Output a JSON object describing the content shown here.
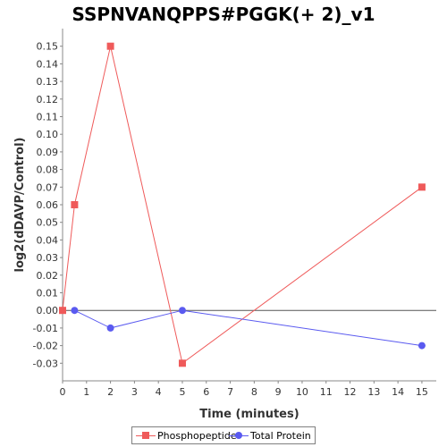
{
  "chart_data": {
    "type": "line",
    "title": "SSPNVANQPPS#PGGK(+ 2)_v1",
    "xlabel": "Time (minutes)",
    "ylabel": "log2(dDAVP/Control)",
    "xlim": [
      0,
      15.6
    ],
    "ylim": [
      -0.04,
      0.16
    ],
    "x_ticks": [
      0,
      1,
      2,
      3,
      4,
      5,
      6,
      7,
      8,
      9,
      10,
      11,
      12,
      13,
      14,
      15
    ],
    "y_ticks": [
      -0.03,
      -0.02,
      -0.01,
      0.0,
      0.01,
      0.02,
      0.03,
      0.04,
      0.05,
      0.06,
      0.07,
      0.08,
      0.09,
      0.1,
      0.11,
      0.12,
      0.13,
      0.14,
      0.15
    ],
    "y_tick_labels": [
      "-0.03",
      "-0.02",
      "-0.01",
      "0.00",
      "0.01",
      "0.02",
      "0.03",
      "0.04",
      "0.05",
      "0.06",
      "0.07",
      "0.08",
      "0.09",
      "0.10",
      "0.11",
      "0.12",
      "0.13",
      "0.14",
      "0.15"
    ],
    "zero_line": 0,
    "grid": false,
    "legend_position": "bottom",
    "series": [
      {
        "name": "Phosphopeptide",
        "color": "#ef5a5a",
        "marker": "square",
        "x": [
          0,
          0.5,
          2,
          5,
          15
        ],
        "y": [
          0.0,
          0.06,
          0.15,
          -0.03,
          0.07
        ]
      },
      {
        "name": "Total Protein",
        "color": "#5a5af0",
        "marker": "circle",
        "x": [
          0.5,
          2,
          5,
          15
        ],
        "y": [
          0.0,
          -0.01,
          0.0,
          -0.02
        ]
      }
    ]
  }
}
